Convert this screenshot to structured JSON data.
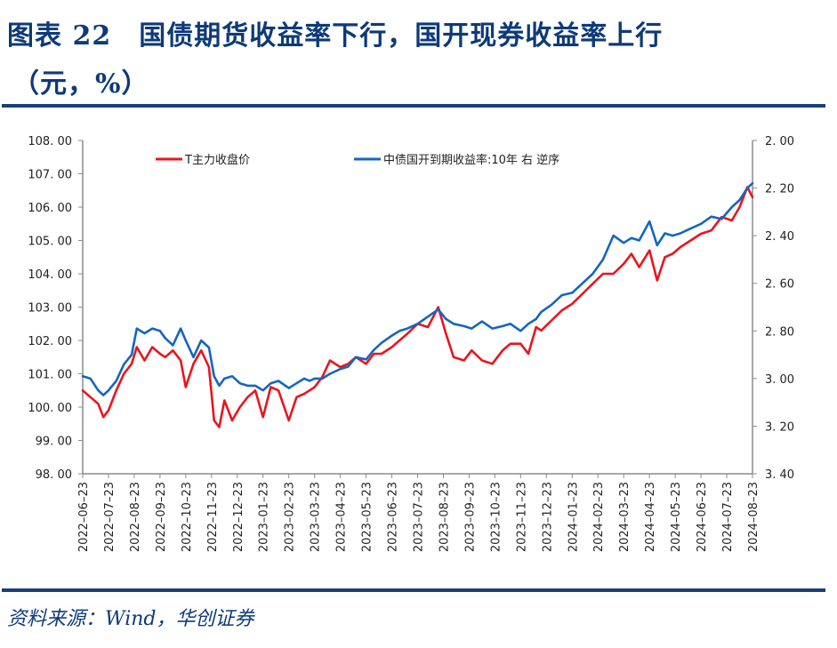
{
  "title": {
    "line1": "图表 22　国债期货收益率下行，国开现券收益率上行",
    "line2": "（元，%）"
  },
  "source": "资料来源：Wind，华创证券",
  "colors": {
    "title": "#0d3a78",
    "rule": "#1b3f78",
    "series_red": "#e8151f",
    "series_blue": "#1565c0",
    "axis": "#8c8c8c"
  },
  "chart_data": {
    "type": "line",
    "title": "国债期货收益率下行，国开现券收益率上行",
    "xlabel": "",
    "ylabel_left": "元",
    "ylabel_right": "%",
    "ylim_left": [
      98.0,
      108.0
    ],
    "ylim_right": [
      2.0,
      3.4
    ],
    "right_axis_inverted": true,
    "grid": false,
    "legend_position": "top",
    "left_ticks": [
      "108.00",
      "107.00",
      "106.00",
      "105.00",
      "104.00",
      "103.00",
      "102.00",
      "101.00",
      "100.00",
      "99.00",
      "98.00"
    ],
    "right_ticks": [
      "2.00",
      "2.20",
      "2.40",
      "2.60",
      "2.80",
      "3.00",
      "3.20",
      "3.40"
    ],
    "x_ticks": [
      "2022-06-23",
      "2022-07-23",
      "2022-08-23",
      "2022-09-23",
      "2022-10-23",
      "2022-11-23",
      "2022-12-23",
      "2023-01-23",
      "2023-02-23",
      "2023-03-23",
      "2023-04-23",
      "2023-05-23",
      "2023-06-23",
      "2023-07-23",
      "2023-08-23",
      "2023-09-23",
      "2023-10-23",
      "2023-11-23",
      "2023-12-23",
      "2024-01-23",
      "2024-02-23",
      "2024-03-23",
      "2024-04-23",
      "2024-05-23",
      "2024-06-23",
      "2024-07-23",
      "2024-08-23"
    ],
    "series": [
      {
        "name": "T主力收盘价",
        "axis": "left",
        "color": "#e8151f",
        "x": [
          0,
          0.3,
          0.6,
          0.8,
          1.0,
          1.3,
          1.6,
          1.9,
          2.1,
          2.4,
          2.7,
          3.0,
          3.2,
          3.5,
          3.8,
          4.0,
          4.3,
          4.6,
          4.9,
          5.1,
          5.3,
          5.5,
          5.8,
          6.1,
          6.4,
          6.7,
          7.0,
          7.3,
          7.6,
          8.0,
          8.3,
          8.6,
          8.8,
          9.0,
          9.3,
          9.6,
          10.0,
          10.3,
          10.6,
          11.0,
          11.3,
          11.6,
          12.0,
          12.3,
          12.6,
          13.0,
          13.4,
          13.8,
          14.1,
          14.4,
          14.8,
          15.1,
          15.5,
          15.9,
          16.3,
          16.6,
          17.0,
          17.3,
          17.6,
          17.8,
          18.2,
          18.6,
          19.0,
          19.4,
          19.8,
          20.2,
          20.6,
          21.0,
          21.3,
          21.6,
          22.0,
          22.3,
          22.6,
          22.9,
          23.2,
          23.6,
          24.0,
          24.4,
          24.8,
          25.2,
          25.5,
          25.8,
          26.0
        ],
        "values": [
          100.5,
          100.3,
          100.1,
          99.7,
          99.9,
          100.5,
          101.0,
          101.3,
          101.8,
          101.4,
          101.8,
          101.6,
          101.5,
          101.7,
          101.4,
          100.6,
          101.3,
          101.7,
          101.2,
          99.6,
          99.4,
          100.2,
          99.6,
          100.0,
          100.3,
          100.5,
          99.7,
          100.6,
          100.5,
          99.6,
          100.3,
          100.4,
          100.5,
          100.6,
          100.9,
          101.4,
          101.2,
          101.3,
          101.5,
          101.3,
          101.6,
          101.6,
          101.8,
          102.0,
          102.2,
          102.5,
          102.4,
          103.0,
          102.2,
          101.5,
          101.4,
          101.7,
          101.4,
          101.3,
          101.7,
          101.9,
          101.9,
          101.6,
          102.4,
          102.3,
          102.6,
          102.9,
          103.1,
          103.4,
          103.7,
          104.0,
          104.0,
          104.3,
          104.6,
          104.2,
          104.7,
          103.8,
          104.5,
          104.6,
          104.8,
          105.0,
          105.2,
          105.3,
          105.7,
          105.6,
          106.0,
          106.6,
          106.3
        ],
        "note": "Estimated from pixel positions; x is month index from 2022-06-23"
      },
      {
        "name": "中债国开到期收益率:10年 右 逆序",
        "axis": "right",
        "color": "#1565c0",
        "x": [
          0,
          0.3,
          0.6,
          0.8,
          1.0,
          1.3,
          1.6,
          1.9,
          2.1,
          2.4,
          2.7,
          3.0,
          3.2,
          3.5,
          3.8,
          4.0,
          4.3,
          4.6,
          4.9,
          5.1,
          5.3,
          5.5,
          5.8,
          6.1,
          6.4,
          6.7,
          7.0,
          7.3,
          7.6,
          8.0,
          8.3,
          8.6,
          8.8,
          9.0,
          9.3,
          9.6,
          10.0,
          10.3,
          10.6,
          11.0,
          11.3,
          11.6,
          12.0,
          12.3,
          12.6,
          13.0,
          13.4,
          13.8,
          14.1,
          14.4,
          14.8,
          15.1,
          15.5,
          15.9,
          16.3,
          16.6,
          17.0,
          17.3,
          17.6,
          17.8,
          18.2,
          18.6,
          19.0,
          19.4,
          19.8,
          20.2,
          20.6,
          21.0,
          21.3,
          21.6,
          22.0,
          22.3,
          22.6,
          22.9,
          23.2,
          23.6,
          24.0,
          24.4,
          24.8,
          25.2,
          25.5,
          25.8,
          26.0
        ],
        "values": [
          2.99,
          3.0,
          3.05,
          3.07,
          3.05,
          3.01,
          2.94,
          2.9,
          2.79,
          2.81,
          2.79,
          2.8,
          2.83,
          2.86,
          2.79,
          2.84,
          2.91,
          2.84,
          2.87,
          2.99,
          3.03,
          3.0,
          2.99,
          3.02,
          3.03,
          3.03,
          3.05,
          3.02,
          3.01,
          3.04,
          3.02,
          3.0,
          3.01,
          3.0,
          3.0,
          2.98,
          2.96,
          2.95,
          2.91,
          2.92,
          2.88,
          2.85,
          2.82,
          2.8,
          2.79,
          2.77,
          2.74,
          2.71,
          2.75,
          2.77,
          2.78,
          2.79,
          2.76,
          2.79,
          2.78,
          2.77,
          2.8,
          2.77,
          2.75,
          2.72,
          2.69,
          2.65,
          2.64,
          2.6,
          2.56,
          2.5,
          2.4,
          2.43,
          2.41,
          2.42,
          2.34,
          2.44,
          2.39,
          2.4,
          2.39,
          2.37,
          2.35,
          2.32,
          2.33,
          2.28,
          2.25,
          2.2,
          2.18
        ],
        "note": "Estimated from pixel positions; right axis inverted"
      }
    ]
  },
  "legend": {
    "items": [
      {
        "label": "T主力收盘价",
        "color": "#e8151f"
      },
      {
        "label": "中债国开到期收益率:10年 右 逆序",
        "color": "#1565c0"
      }
    ]
  }
}
